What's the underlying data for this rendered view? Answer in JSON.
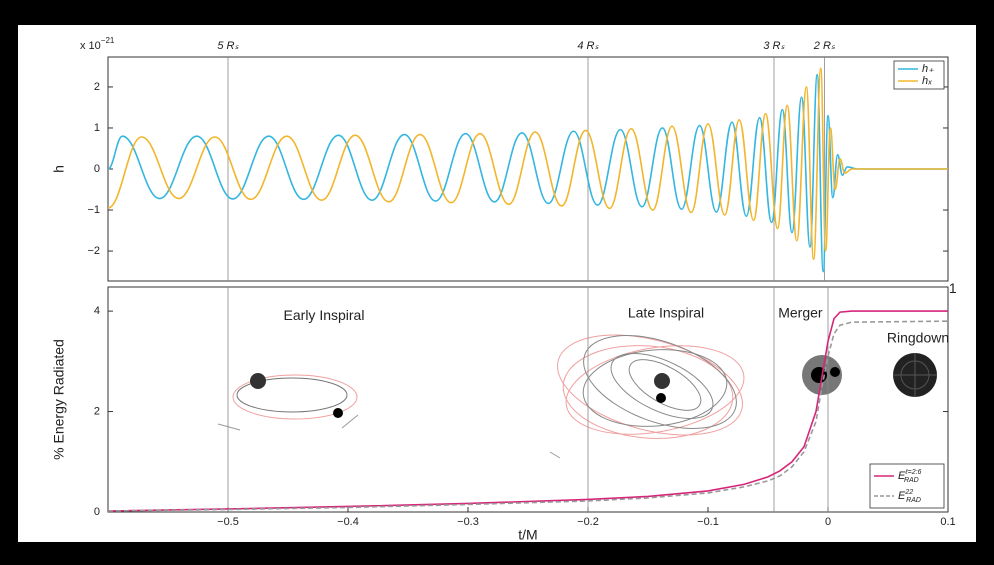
{
  "chart_data": [
    {
      "type": "line",
      "y_label": "h",
      "y_scale": {
        "base": "x 10",
        "exponent": "−21"
      },
      "xlim": [
        -0.6,
        0.1
      ],
      "ylim": [
        -2.73,
        2.73
      ],
      "yticks": [
        {
          "value": -2,
          "label": "−2"
        },
        {
          "value": -1,
          "label": "−1"
        },
        0,
        1,
        2
      ],
      "markers": [
        {
          "x": -0.5,
          "label": "5 Rₛ"
        },
        {
          "x": -0.2,
          "label": "4 Rₛ"
        },
        {
          "x": -0.045,
          "label": "3 Rₛ"
        },
        {
          "x": -0.003,
          "label": "2 Rₛ"
        }
      ],
      "legend": "upper right",
      "series": [
        {
          "name": "h₊",
          "color": "#33b6e0",
          "x": [
            -0.6,
            -0.588,
            -0.557,
            -0.526,
            -0.496,
            -0.466,
            -0.437,
            -0.408,
            -0.38,
            -0.353,
            -0.327,
            -0.302,
            -0.278,
            -0.255,
            -0.233,
            -0.212,
            -0.192,
            -0.173,
            -0.155,
            -0.138,
            -0.122,
            -0.107,
            -0.093,
            -0.08,
            -0.068,
            -0.057,
            -0.047,
            -0.038,
            -0.03,
            -0.022,
            -0.015,
            -0.009,
            -0.004,
            0,
            0.004,
            0.008,
            0.012,
            0.016,
            0.025,
            0.1
          ],
          "values": [
            0,
            0.8,
            -0.72,
            0.8,
            -0.73,
            0.8,
            -0.74,
            0.82,
            -0.76,
            0.84,
            -0.78,
            0.86,
            -0.8,
            0.88,
            -0.84,
            0.92,
            -0.88,
            0.96,
            -0.92,
            1.0,
            -0.98,
            1.06,
            -1.05,
            1.14,
            -1.15,
            1.25,
            -1.3,
            1.45,
            -1.55,
            1.75,
            -1.9,
            2.3,
            -2.5,
            1.3,
            -0.7,
            0.35,
            -0.15,
            0.05,
            0,
            0
          ]
        },
        {
          "name": "hₓ",
          "color": "#f2b52c",
          "x": [
            -0.6,
            -0.572,
            -0.541,
            -0.511,
            -0.481,
            -0.451,
            -0.422,
            -0.394,
            -0.366,
            -0.34,
            -0.314,
            -0.29,
            -0.266,
            -0.244,
            -0.222,
            -0.202,
            -0.182,
            -0.164,
            -0.146,
            -0.13,
            -0.114,
            -0.1,
            -0.086,
            -0.074,
            -0.062,
            -0.052,
            -0.042,
            -0.034,
            -0.026,
            -0.018,
            -0.012,
            -0.006,
            -0.002,
            0.002,
            0.006,
            0.01,
            0.014,
            0.02,
            0.1
          ],
          "values": [
            -0.95,
            0.78,
            -0.72,
            0.78,
            -0.74,
            0.8,
            -0.76,
            0.82,
            -0.8,
            0.84,
            -0.82,
            0.86,
            -0.86,
            0.9,
            -0.9,
            0.94,
            -0.96,
            0.98,
            -1.0,
            1.04,
            -1.06,
            1.1,
            -1.12,
            1.2,
            -1.25,
            1.35,
            -1.45,
            1.55,
            -1.75,
            2.0,
            -2.2,
            2.45,
            -2.0,
            1.0,
            -0.5,
            0.25,
            -0.1,
            0,
            0
          ]
        }
      ]
    },
    {
      "type": "line",
      "x_label": "t/M",
      "y_label": "% Energy Radiated",
      "xlim": [
        -0.6,
        0.1
      ],
      "ylim": [
        0,
        4.48
      ],
      "xticks": [
        {
          "value": -0.5,
          "label": "−0.5"
        },
        {
          "value": -0.4,
          "label": "−0.4"
        },
        {
          "value": -0.3,
          "label": "−0.3"
        },
        {
          "value": -0.2,
          "label": "−0.2"
        },
        {
          "value": -0.1,
          "label": "−0.1"
        },
        0,
        0.1
      ],
      "yticks": [
        0,
        2,
        4
      ],
      "markers": [
        {
          "x": -0.5
        },
        {
          "x": -0.2
        },
        {
          "x": -0.045
        },
        {
          "x": 0
        }
      ],
      "annotations": [
        {
          "text": "Early Inspiral",
          "x": -0.42,
          "y": 3.9
        },
        {
          "text": "Late Inspiral",
          "x": -0.135,
          "y": 3.95
        },
        {
          "text": "Merger",
          "x": -0.023,
          "y": 3.95
        },
        {
          "text": "Ringdown",
          "x": 0.075,
          "y": 3.45
        },
        {
          "text": "1",
          "x": 0.104,
          "y": 4.43
        }
      ],
      "legend": "lower right",
      "series": [
        {
          "name": "E",
          "sub": "RAD",
          "sup": "ℓ=2:6",
          "color": "#d6267a",
          "dash": false,
          "x": [
            -0.6,
            -0.5,
            -0.4,
            -0.3,
            -0.2,
            -0.15,
            -0.1,
            -0.07,
            -0.05,
            -0.04,
            -0.03,
            -0.02,
            -0.01,
            -0.005,
            0,
            0.005,
            0.01,
            0.02,
            0.1
          ],
          "values": [
            0.02,
            0.06,
            0.11,
            0.17,
            0.25,
            0.31,
            0.42,
            0.55,
            0.7,
            0.82,
            1.0,
            1.3,
            2.0,
            2.7,
            3.4,
            3.85,
            3.98,
            4.0,
            4.0
          ]
        },
        {
          "name": "E",
          "sub": "RAD",
          "sup": "22",
          "color": "#999999",
          "dash": true,
          "x": [
            -0.6,
            -0.5,
            -0.4,
            -0.3,
            -0.2,
            -0.15,
            -0.1,
            -0.07,
            -0.05,
            -0.04,
            -0.03,
            -0.02,
            -0.01,
            -0.005,
            0,
            0.005,
            0.01,
            0.02,
            0.1
          ],
          "values": [
            0.02,
            0.05,
            0.09,
            0.15,
            0.22,
            0.28,
            0.38,
            0.5,
            0.62,
            0.72,
            0.9,
            1.2,
            1.8,
            2.5,
            3.1,
            3.55,
            3.72,
            3.78,
            3.8
          ]
        }
      ]
    }
  ]
}
